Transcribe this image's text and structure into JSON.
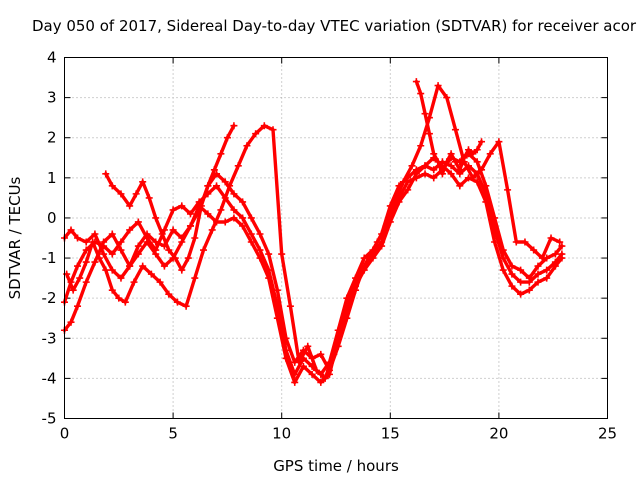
{
  "chart_data": {
    "type": "scatter",
    "title": "Day 050 of 2017, Sidereal Day-to-day VTEC variation (SDTVAR) for receiver acor",
    "xlabel": "GPS time / hours",
    "ylabel": "SDTVAR / TECUs",
    "xlim": [
      0,
      25
    ],
    "ylim": [
      -5,
      4
    ],
    "xticks": [
      0,
      5,
      10,
      15,
      20,
      25
    ],
    "yticks": [
      -5,
      -4,
      -3,
      -2,
      -1,
      0,
      1,
      2,
      3,
      4
    ],
    "grid": true,
    "marker": "plus",
    "color": "#ff0000",
    "series": [
      {
        "name": "track-1",
        "x": [
          0.0,
          0.3,
          0.6,
          1.0,
          1.4,
          1.8,
          2.2,
          2.6,
          3.0,
          3.4,
          3.8,
          4.2,
          4.6,
          5.0,
          5.4,
          5.8,
          6.2,
          6.6,
          7.0,
          7.4,
          7.8,
          8.2,
          8.6,
          9.0,
          9.4,
          9.8,
          10.2,
          10.6,
          11.0,
          11.4,
          11.8,
          12.2,
          12.6,
          13.0,
          13.4,
          13.8,
          14.2,
          14.6,
          15.0,
          15.4,
          15.8,
          16.2,
          16.6,
          17.0,
          17.4,
          17.8,
          18.2,
          18.6,
          19.0,
          19.4,
          19.8,
          20.2,
          20.6,
          21.0,
          21.4,
          21.8,
          22.2,
          22.6,
          22.9
        ],
        "y": [
          -2.1,
          -1.6,
          -1.2,
          -0.8,
          -0.6,
          -0.7,
          -0.9,
          -0.6,
          -0.3,
          -0.1,
          -0.5,
          -0.8,
          -0.3,
          0.2,
          0.3,
          0.1,
          0.4,
          0.6,
          0.8,
          0.5,
          0.2,
          0.0,
          -0.4,
          -0.8,
          -1.3,
          -2.2,
          -3.3,
          -3.9,
          -3.5,
          -3.7,
          -3.9,
          -3.6,
          -2.8,
          -2.0,
          -1.5,
          -1.0,
          -0.8,
          -0.4,
          0.3,
          0.8,
          1.0,
          1.2,
          1.3,
          1.2,
          1.4,
          1.3,
          1.1,
          1.3,
          1.1,
          0.6,
          -0.3,
          -1.0,
          -1.4,
          -1.6,
          -1.6,
          -1.4,
          -1.3,
          -1.1,
          -0.9
        ]
      },
      {
        "name": "track-2",
        "x": [
          0.0,
          0.3,
          0.6,
          1.0,
          1.4,
          1.8,
          2.2,
          2.6,
          3.0,
          3.4,
          3.8,
          4.2,
          4.6,
          5.0,
          5.4,
          5.8,
          6.2,
          6.6,
          7.0,
          7.4,
          7.8,
          8.2,
          8.6,
          9.0,
          9.4,
          9.8,
          10.2,
          10.6,
          11.0,
          11.4,
          11.8,
          12.2,
          12.6,
          13.0,
          13.4,
          13.8,
          14.2,
          14.6,
          15.0,
          15.4,
          15.8,
          16.2,
          16.6,
          17.0,
          17.4,
          17.8,
          18.2,
          18.6,
          19.0,
          19.4,
          19.8,
          20.2,
          20.6,
          21.0,
          21.4,
          21.8,
          22.2,
          22.6,
          22.9
        ],
        "y": [
          -2.8,
          -2.6,
          -2.2,
          -1.6,
          -1.1,
          -0.6,
          -0.4,
          -0.8,
          -1.2,
          -0.7,
          -0.4,
          -0.6,
          -0.7,
          -0.3,
          -0.5,
          -0.2,
          0.2,
          0.8,
          1.1,
          0.9,
          0.6,
          0.4,
          0.0,
          -0.4,
          -0.9,
          -1.8,
          -3.0,
          -3.6,
          -3.3,
          -3.5,
          -3.4,
          -3.8,
          -3.2,
          -2.5,
          -1.8,
          -1.2,
          -0.9,
          -0.6,
          0.1,
          0.5,
          0.9,
          1.0,
          1.1,
          1.0,
          1.2,
          1.5,
          1.4,
          1.6,
          1.4,
          0.8,
          0.0,
          -0.8,
          -1.2,
          -1.3,
          -1.5,
          -1.2,
          -1.0,
          -0.9,
          -0.7
        ]
      },
      {
        "name": "track-3",
        "x": [
          0.0,
          0.3,
          0.6,
          1.0,
          1.4,
          1.8,
          2.2,
          2.6,
          3.0,
          3.4,
          3.8,
          4.2,
          4.6,
          5.0,
          5.4,
          5.8,
          6.2,
          6.6,
          7.0,
          7.4,
          7.8,
          8.2,
          8.6,
          9.0,
          9.4,
          9.8,
          10.2,
          10.6,
          11.0,
          11.4,
          11.8,
          12.2,
          12.6,
          13.0,
          13.4,
          13.8,
          14.2,
          14.6,
          15.0,
          15.4,
          15.8,
          16.2,
          16.6,
          17.0,
          17.4,
          17.8,
          18.2,
          18.6,
          19.0,
          19.4,
          19.8,
          20.2,
          20.6,
          21.0,
          21.4,
          21.8,
          22.2,
          22.6,
          22.9
        ],
        "y": [
          -0.5,
          -0.3,
          -0.5,
          -0.6,
          -0.4,
          -0.9,
          -1.3,
          -1.5,
          -1.2,
          -0.9,
          -0.6,
          -0.9,
          -1.2,
          -1.0,
          -0.6,
          -0.2,
          0.3,
          0.1,
          -0.1,
          -0.1,
          0.0,
          -0.2,
          -0.6,
          -1.0,
          -1.5,
          -2.5,
          -3.5,
          -4.1,
          -3.7,
          -3.9,
          -4.1,
          -3.9,
          -3.0,
          -2.3,
          -1.7,
          -1.3,
          -1.0,
          -0.7,
          -0.1,
          0.4,
          0.7,
          1.1,
          1.3,
          1.5,
          1.3,
          1.1,
          0.8,
          1.0,
          0.9,
          0.4,
          -0.6,
          -1.3,
          -1.7,
          -1.9,
          -1.8,
          -1.6,
          -1.5,
          -1.2,
          -1.0
        ]
      },
      {
        "name": "track-4",
        "x": [
          0.1,
          0.4,
          0.7,
          1.0,
          1.3,
          1.6,
          1.9,
          2.2,
          2.5,
          2.8,
          3.2,
          3.6,
          4.0,
          4.4,
          4.8,
          5.2,
          5.6,
          6.0,
          6.4,
          6.8,
          7.2,
          7.6,
          8.0,
          8.4,
          8.8,
          9.2,
          9.6,
          10.0,
          10.4,
          10.8,
          11.2,
          11.6,
          12.0,
          12.4,
          12.8,
          13.2,
          13.6,
          14.0,
          14.4,
          14.8,
          15.2,
          15.6,
          16.0,
          16.4,
          16.8,
          17.2,
          17.6,
          18.0,
          18.4,
          18.8,
          19.2,
          19.6,
          20.0,
          20.4,
          20.8,
          21.2,
          21.6,
          22.0,
          22.4,
          22.8
        ],
        "y": [
          -1.4,
          -1.8,
          -1.5,
          -1.1,
          -0.6,
          -1.0,
          -1.3,
          -1.8,
          -2.0,
          -2.1,
          -1.6,
          -1.2,
          -1.4,
          -1.6,
          -1.9,
          -2.1,
          -2.2,
          -1.5,
          -0.8,
          -0.3,
          0.2,
          0.8,
          1.3,
          1.8,
          2.1,
          2.3,
          2.2,
          -0.9,
          -2.2,
          -3.6,
          -3.2,
          -3.8,
          -4.0,
          -3.4,
          -2.7,
          -1.9,
          -1.4,
          -1.0,
          -0.6,
          -0.2,
          0.4,
          0.9,
          1.3,
          1.8,
          2.5,
          3.3,
          3.0,
          2.2,
          1.4,
          1.0,
          1.2,
          1.6,
          1.9,
          0.7,
          -0.6,
          -0.6,
          -0.8,
          -1.0,
          -0.5,
          -0.6
        ]
      },
      {
        "name": "track-5",
        "x": [
          1.9,
          2.2,
          2.6,
          3.0,
          3.3,
          3.6,
          3.9,
          4.2,
          4.5,
          4.8,
          5.1,
          5.4,
          5.7,
          6.0,
          6.3,
          6.6,
          6.9,
          7.2,
          7.5,
          7.8
        ],
        "y": [
          1.1,
          0.8,
          0.6,
          0.3,
          0.6,
          0.9,
          0.5,
          0.0,
          -0.4,
          -0.8,
          -1.0,
          -1.3,
          -1.0,
          -0.5,
          0.3,
          0.8,
          1.2,
          1.6,
          2.0,
          2.3
        ]
      },
      {
        "name": "track-6",
        "x": [
          16.2,
          16.4,
          16.6,
          16.8,
          17.0,
          17.2,
          17.4,
          17.6,
          17.8,
          18.0,
          18.2,
          18.4,
          18.6,
          18.8,
          19.0,
          19.2
        ],
        "y": [
          3.4,
          3.1,
          2.6,
          2.1,
          1.6,
          1.4,
          1.1,
          1.4,
          1.6,
          1.4,
          1.2,
          1.5,
          1.7,
          1.6,
          1.7,
          1.9
        ]
      }
    ]
  }
}
